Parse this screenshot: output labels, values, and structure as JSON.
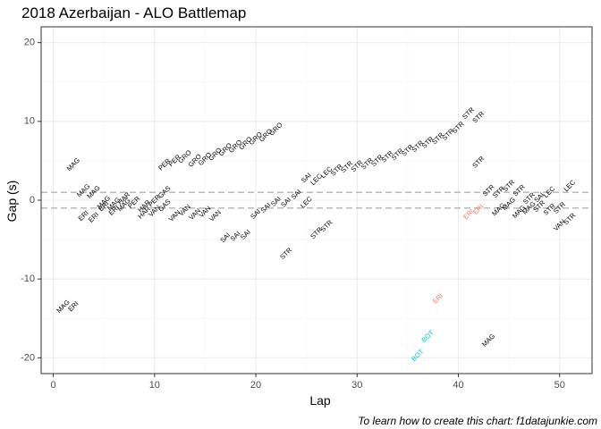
{
  "chart_data": {
    "type": "scatter",
    "title": "2018 Azerbaijan - ALO Battlemap",
    "caption": "To learn how to create this chart: f1datajunkie.com",
    "xlabel": "Lap",
    "ylabel": "Gap (s)",
    "xlim": [
      -1.2,
      53.2
    ],
    "ylim": [
      -22,
      22
    ],
    "xticks": [
      0,
      10,
      20,
      30,
      40,
      50
    ],
    "yticks": [
      -20,
      -10,
      0,
      10,
      20
    ],
    "grid": true,
    "reference_lines": [
      1,
      -1
    ],
    "colors": {
      "default": "#000000",
      "ERI_highlight": "#f8766d",
      "BOT": "#00bfc4",
      "refline": "#b3b3b3",
      "grid_major": "#ebebeb",
      "grid_minor": "#f5f5f5",
      "panel_border": "#333333"
    },
    "points": [
      {
        "lap": 1,
        "gap": -13.5,
        "label": "MAG",
        "color": "default"
      },
      {
        "lap": 2,
        "gap": -13.5,
        "label": "ERI",
        "color": "default"
      },
      {
        "lap": 2,
        "gap": 4.5,
        "label": "MAG",
        "color": "default"
      },
      {
        "lap": 3,
        "gap": 1.2,
        "label": "MAG",
        "color": "default"
      },
      {
        "lap": 3,
        "gap": -2.0,
        "label": "ERI",
        "color": "default"
      },
      {
        "lap": 4,
        "gap": 1.0,
        "label": "MAG",
        "color": "default"
      },
      {
        "lap": 4,
        "gap": -2.2,
        "label": "ERI",
        "color": "default"
      },
      {
        "lap": 5,
        "gap": -0.3,
        "label": "MAG",
        "color": "default"
      },
      {
        "lap": 5,
        "gap": -0.8,
        "label": "ERI",
        "color": "default"
      },
      {
        "lap": 6,
        "gap": -0.5,
        "label": "MAG",
        "color": "default"
      },
      {
        "lap": 6,
        "gap": -1.3,
        "label": "ERI",
        "color": "default"
      },
      {
        "lap": 7,
        "gap": 0.2,
        "label": "HAR",
        "color": "default"
      },
      {
        "lap": 7,
        "gap": -0.6,
        "label": "MAG",
        "color": "default"
      },
      {
        "lap": 8,
        "gap": -0.3,
        "label": "PER",
        "color": "default"
      },
      {
        "lap": 9,
        "gap": -0.8,
        "label": "HAR",
        "color": "default"
      },
      {
        "lap": 9,
        "gap": -1.6,
        "label": "HAR",
        "color": "default"
      },
      {
        "lap": 10,
        "gap": -0.1,
        "label": "PER",
        "color": "default"
      },
      {
        "lap": 10,
        "gap": -1.4,
        "label": "VAN",
        "color": "default"
      },
      {
        "lap": 11,
        "gap": 1.0,
        "label": "GAS",
        "color": "default"
      },
      {
        "lap": 11,
        "gap": -0.7,
        "label": "GAS",
        "color": "default"
      },
      {
        "lap": 11,
        "gap": 4.5,
        "label": "PER",
        "color": "default"
      },
      {
        "lap": 12,
        "gap": 5.0,
        "label": "PER",
        "color": "default"
      },
      {
        "lap": 12,
        "gap": -2.0,
        "label": "VAN",
        "color": "default"
      },
      {
        "lap": 13,
        "gap": 5.5,
        "label": "GRO",
        "color": "default"
      },
      {
        "lap": 13,
        "gap": -1.3,
        "label": "VAN",
        "color": "default"
      },
      {
        "lap": 14,
        "gap": 5.0,
        "label": "GRO",
        "color": "default"
      },
      {
        "lap": 14,
        "gap": -1.8,
        "label": "VAN",
        "color": "default"
      },
      {
        "lap": 15,
        "gap": 5.2,
        "label": "GRO",
        "color": "default"
      },
      {
        "lap": 15,
        "gap": -1.5,
        "label": "VAN",
        "color": "default"
      },
      {
        "lap": 16,
        "gap": 5.8,
        "label": "GRO",
        "color": "default"
      },
      {
        "lap": 16,
        "gap": -2.0,
        "label": "VAN",
        "color": "default"
      },
      {
        "lap": 17,
        "gap": 6.4,
        "label": "GRO",
        "color": "default"
      },
      {
        "lap": 17,
        "gap": -4.8,
        "label": "SAI",
        "color": "default"
      },
      {
        "lap": 18,
        "gap": 6.8,
        "label": "GRO",
        "color": "default"
      },
      {
        "lap": 18,
        "gap": -4.6,
        "label": "SAI",
        "color": "default"
      },
      {
        "lap": 19,
        "gap": 7.2,
        "label": "GRO",
        "color": "default"
      },
      {
        "lap": 19,
        "gap": -4.4,
        "label": "SAI",
        "color": "default"
      },
      {
        "lap": 20,
        "gap": 7.8,
        "label": "GRO",
        "color": "default"
      },
      {
        "lap": 20,
        "gap": -1.8,
        "label": "SAI",
        "color": "default"
      },
      {
        "lap": 21,
        "gap": 8.2,
        "label": "GRO",
        "color": "default"
      },
      {
        "lap": 21,
        "gap": -1.0,
        "label": "SAI",
        "color": "default"
      },
      {
        "lap": 22,
        "gap": 9.0,
        "label": "GRO",
        "color": "default"
      },
      {
        "lap": 22,
        "gap": -0.2,
        "label": "SAI",
        "color": "default"
      },
      {
        "lap": 23,
        "gap": -0.3,
        "label": "SAI",
        "color": "default"
      },
      {
        "lap": 23,
        "gap": -6.8,
        "label": "STR",
        "color": "default"
      },
      {
        "lap": 24,
        "gap": 0.7,
        "label": "SAI",
        "color": "default"
      },
      {
        "lap": 25,
        "gap": 2.8,
        "label": "SAI",
        "color": "default"
      },
      {
        "lap": 25,
        "gap": -0.3,
        "label": "LEC",
        "color": "default"
      },
      {
        "lap": 26,
        "gap": 2.6,
        "label": "LEC",
        "color": "default"
      },
      {
        "lap": 26,
        "gap": -4.2,
        "label": "STR",
        "color": "default"
      },
      {
        "lap": 27,
        "gap": 3.5,
        "label": "LEC",
        "color": "default"
      },
      {
        "lap": 27,
        "gap": -3.3,
        "label": "STR",
        "color": "default"
      },
      {
        "lap": 28,
        "gap": 3.8,
        "label": "STR",
        "color": "default"
      },
      {
        "lap": 29,
        "gap": 4.2,
        "label": "STR",
        "color": "default"
      },
      {
        "lap": 30,
        "gap": 4.3,
        "label": "STR",
        "color": "default"
      },
      {
        "lap": 31,
        "gap": 4.6,
        "label": "STR",
        "color": "default"
      },
      {
        "lap": 32,
        "gap": 5.0,
        "label": "STR",
        "color": "default"
      },
      {
        "lap": 33,
        "gap": 5.5,
        "label": "STR",
        "color": "default"
      },
      {
        "lap": 34,
        "gap": 5.8,
        "label": "STR",
        "color": "default"
      },
      {
        "lap": 35,
        "gap": 6.3,
        "label": "STR",
        "color": "default"
      },
      {
        "lap": 36,
        "gap": 6.8,
        "label": "STR",
        "color": "default"
      },
      {
        "lap": 37,
        "gap": 7.3,
        "label": "STR",
        "color": "default"
      },
      {
        "lap": 38,
        "gap": 7.8,
        "label": "STR",
        "color": "default"
      },
      {
        "lap": 39,
        "gap": 8.3,
        "label": "STR",
        "color": "default"
      },
      {
        "lap": 40,
        "gap": 9.2,
        "label": "STR",
        "color": "default"
      },
      {
        "lap": 41,
        "gap": 11.0,
        "label": "STR",
        "color": "default"
      },
      {
        "lap": 42,
        "gap": 10.5,
        "label": "STR",
        "color": "default"
      },
      {
        "lap": 36,
        "gap": -19.7,
        "label": "BOT",
        "color": "BOT"
      },
      {
        "lap": 37,
        "gap": -17.3,
        "label": "BOT",
        "color": "BOT"
      },
      {
        "lap": 38,
        "gap": -12.5,
        "label": "ERI",
        "color": "ERI_highlight"
      },
      {
        "lap": 41,
        "gap": -1.8,
        "label": "ERI",
        "color": "ERI_highlight"
      },
      {
        "lap": 42,
        "gap": -1.2,
        "label": "ERI",
        "color": "ERI_highlight"
      },
      {
        "lap": 42,
        "gap": 4.8,
        "label": "STR",
        "color": "default"
      },
      {
        "lap": 43,
        "gap": -17.8,
        "label": "MAG",
        "color": "default"
      },
      {
        "lap": 43,
        "gap": 1.2,
        "label": "STR",
        "color": "default"
      },
      {
        "lap": 44,
        "gap": 1.0,
        "label": "STR",
        "color": "default"
      },
      {
        "lap": 44,
        "gap": -1.2,
        "label": "MAG",
        "color": "default"
      },
      {
        "lap": 45,
        "gap": -0.5,
        "label": "MAG",
        "color": "default"
      },
      {
        "lap": 45,
        "gap": 1.8,
        "label": "STR",
        "color": "default"
      },
      {
        "lap": 46,
        "gap": 1.2,
        "label": "STR",
        "color": "default"
      },
      {
        "lap": 46,
        "gap": -1.5,
        "label": "MAG",
        "color": "default"
      },
      {
        "lap": 47,
        "gap": 0.2,
        "label": "STR",
        "color": "default"
      },
      {
        "lap": 47,
        "gap": -1.0,
        "label": "MAG",
        "color": "default"
      },
      {
        "lap": 48,
        "gap": -0.8,
        "label": "STR",
        "color": "default"
      },
      {
        "lap": 48,
        "gap": 0.3,
        "label": "SAI",
        "color": "default"
      },
      {
        "lap": 49,
        "gap": 1.0,
        "label": "LEC",
        "color": "default"
      },
      {
        "lap": 49,
        "gap": -1.2,
        "label": "STR",
        "color": "default"
      },
      {
        "lap": 50,
        "gap": -1.0,
        "label": "STR",
        "color": "default"
      },
      {
        "lap": 50,
        "gap": -3.2,
        "label": "VAN",
        "color": "default"
      },
      {
        "lap": 51,
        "gap": -2.4,
        "label": "STR",
        "color": "default"
      },
      {
        "lap": 51,
        "gap": 1.8,
        "label": "LEC",
        "color": "default"
      }
    ]
  }
}
